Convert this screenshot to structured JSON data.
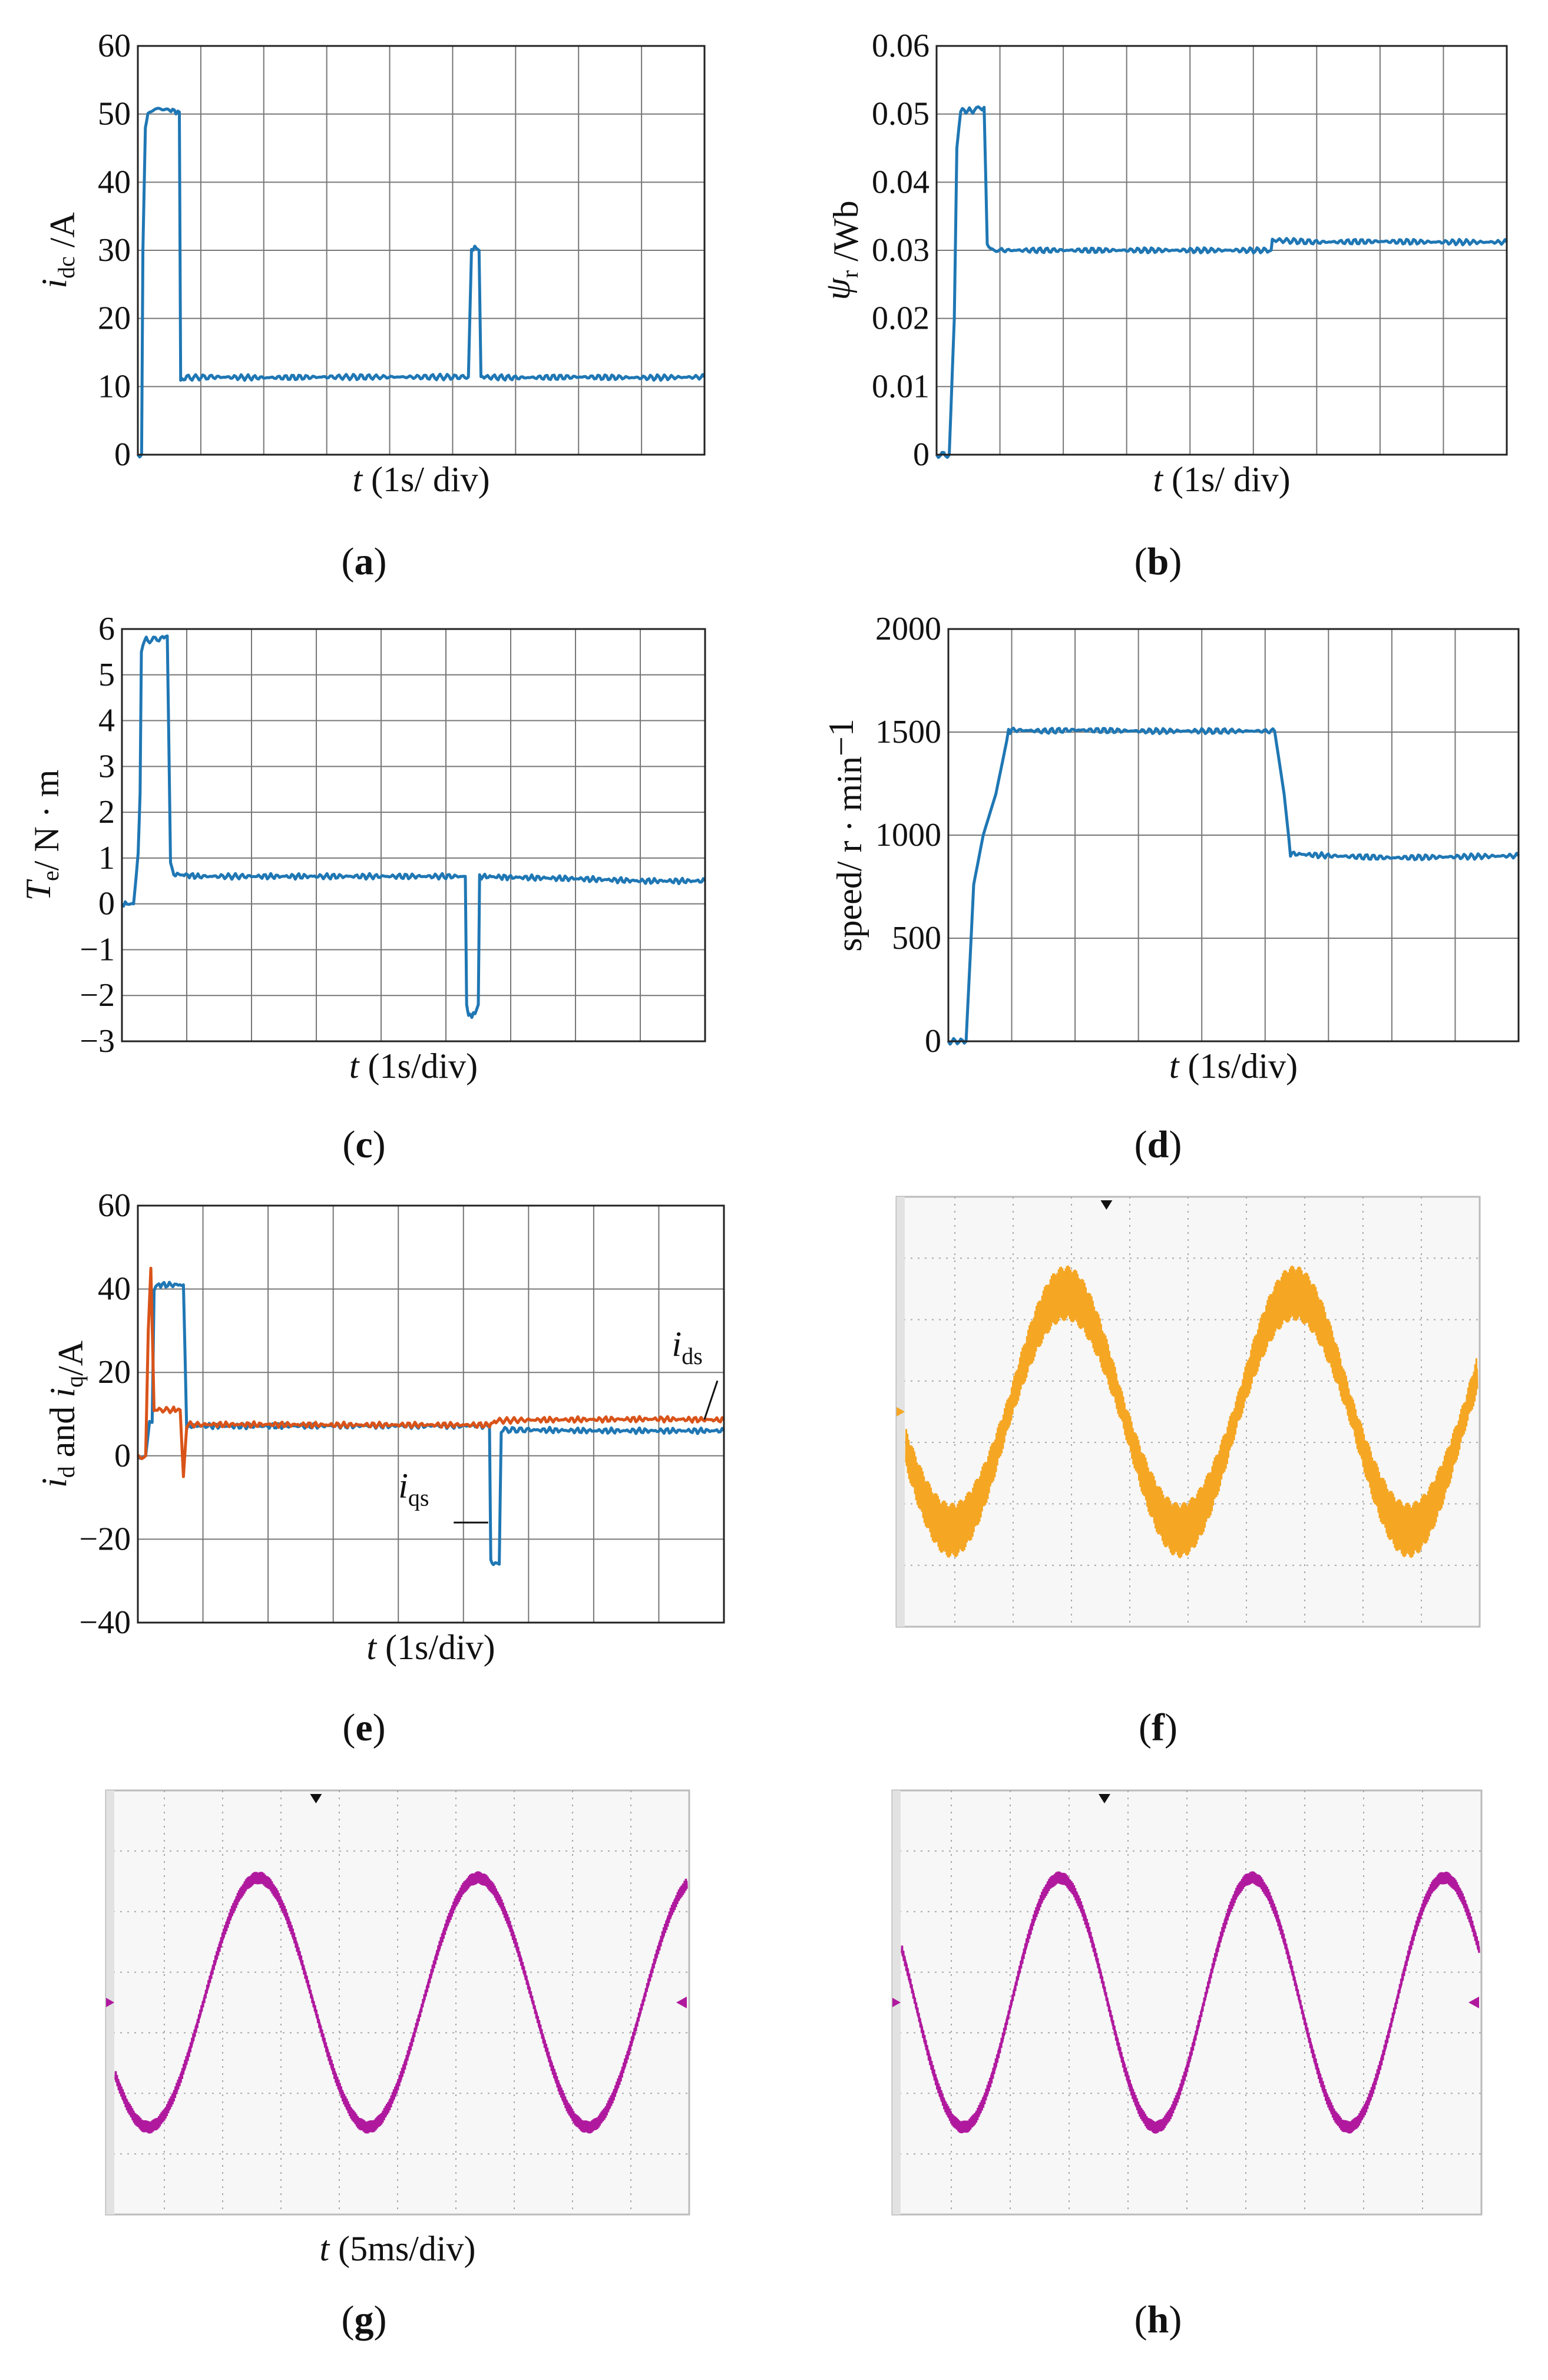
{
  "colors": {
    "blue": "#1f77b4",
    "orange": "#d95319",
    "scope_yellow": "#f5a623",
    "scope_magenta": "#b0199e"
  },
  "chart_data": [
    {
      "id": "a",
      "type": "line",
      "caption": "a",
      "xlabel": "t (1s/ div)",
      "ylabel": "idc /A",
      "ylim": [
        0,
        60
      ],
      "yticks": [
        0,
        10,
        20,
        30,
        40,
        50,
        60
      ],
      "ytick_labels": [
        "0",
        "10",
        "20",
        "30",
        "40",
        "50",
        "60"
      ],
      "xlim": [
        0,
        9
      ],
      "x_divisions": 9,
      "grid": true,
      "series": [
        {
          "name": "idc",
          "color": "#1f77b4",
          "x": [
            0,
            0.06,
            0.08,
            0.12,
            0.16,
            0.22,
            0.3,
            0.5,
            0.66,
            0.68,
            0.72,
            1.2,
            2.0,
            3.0,
            5.25,
            5.3,
            5.35,
            5.42,
            5.45,
            5.5,
            6.0,
            7.0,
            8.0,
            9.0
          ],
          "y": [
            0,
            0,
            30,
            48,
            50,
            50.5,
            50.8,
            50.6,
            50.3,
            11,
            11.3,
            11.4,
            11.3,
            11.4,
            11.4,
            30,
            30.5,
            30,
            11.5,
            11.4,
            11.3,
            11.4,
            11.3,
            11.4
          ]
        }
      ]
    },
    {
      "id": "b",
      "type": "line",
      "caption": "b",
      "xlabel": "t (1s/ div)",
      "ylabel": "ψr /Wb",
      "ylim": [
        0,
        0.06
      ],
      "yticks": [
        0,
        0.01,
        0.02,
        0.03,
        0.04,
        0.05,
        0.06
      ],
      "ytick_labels": [
        "0",
        "0.01",
        "0.02",
        "0.03",
        "0.04",
        "0.05",
        "0.06"
      ],
      "xlim": [
        0,
        9
      ],
      "x_divisions": 9,
      "grid": true,
      "series": [
        {
          "name": "ψr",
          "color": "#1f77b4",
          "x": [
            0,
            0.2,
            0.28,
            0.32,
            0.38,
            0.6,
            0.75,
            0.8,
            0.85,
            1.0,
            2.0,
            3.0,
            5.28,
            5.3,
            6.0,
            7.0,
            8.0,
            9.0
          ],
          "y": [
            0,
            0,
            0.02,
            0.045,
            0.0505,
            0.0505,
            0.051,
            0.031,
            0.0302,
            0.03,
            0.03,
            0.03,
            0.03,
            0.0315,
            0.0312,
            0.0313,
            0.0312,
            0.0312
          ]
        }
      ]
    },
    {
      "id": "c",
      "type": "line",
      "caption": "c",
      "xlabel": "t (1s/div)",
      "ylabel": "Te/ N · m",
      "ylim": [
        -3,
        6
      ],
      "yticks": [
        -3,
        -2,
        -1,
        0,
        1,
        2,
        3,
        4,
        5,
        6
      ],
      "ytick_labels": [
        "−3",
        "−2",
        "−1",
        "0",
        "1",
        "2",
        "3",
        "4",
        "5",
        "6"
      ],
      "xlim": [
        0,
        9
      ],
      "x_divisions": 9,
      "grid": true,
      "series": [
        {
          "name": "Te",
          "color": "#1f77b4",
          "x": [
            0,
            0.18,
            0.22,
            0.25,
            0.28,
            0.3,
            0.35,
            0.4,
            0.6,
            0.7,
            0.75,
            0.8,
            1.2,
            2.0,
            3.0,
            5.3,
            5.32,
            5.35,
            5.45,
            5.5,
            5.52,
            6.0,
            7.0,
            8.0,
            9.0
          ],
          "y": [
            0,
            0,
            0.6,
            1.1,
            2.4,
            5.5,
            5.8,
            5.75,
            5.8,
            5.85,
            0.9,
            0.65,
            0.6,
            0.6,
            0.6,
            0.6,
            -2.2,
            -2.45,
            -2.4,
            -2.2,
            0.6,
            0.58,
            0.55,
            0.5,
            0.5
          ]
        }
      ]
    },
    {
      "id": "d",
      "type": "line",
      "caption": "d",
      "xlabel": "t (1s/div)",
      "ylabel": "speed/ r · min−1",
      "ylim": [
        0,
        2000
      ],
      "yticks": [
        0,
        500,
        1000,
        1500,
        2000
      ],
      "ytick_labels": [
        "0",
        "500",
        "1000",
        "1500",
        "2000"
      ],
      "xlim": [
        0,
        9
      ],
      "x_divisions": 9,
      "grid": true,
      "series": [
        {
          "name": "speed",
          "color": "#1f77b4",
          "x": [
            0,
            0.28,
            0.4,
            0.55,
            0.75,
            0.95,
            1.0,
            1.5,
            2.0,
            3.0,
            4.0,
            5.15,
            5.3,
            5.4,
            6.0,
            7.0,
            8.0,
            9.0
          ],
          "y": [
            0,
            0,
            760,
            1000,
            1200,
            1500,
            1510,
            1505,
            1510,
            1505,
            1505,
            1505,
            1200,
            910,
            900,
            890,
            895,
            900
          ]
        }
      ]
    },
    {
      "id": "e",
      "type": "line",
      "caption": "e",
      "xlabel": "t (1s/div)",
      "ylabel": "id and iq/A",
      "ylim": [
        -40,
        60
      ],
      "yticks": [
        -40,
        -20,
        0,
        20,
        40,
        60
      ],
      "ytick_labels": [
        "−40",
        "−20",
        "0",
        "20",
        "40",
        "60"
      ],
      "xlim": [
        0,
        9
      ],
      "x_divisions": 9,
      "grid": true,
      "annotations": [
        {
          "text": "ids",
          "series": "ids"
        },
        {
          "text": "iqs",
          "series": "iqs"
        }
      ],
      "series": [
        {
          "name": "iqs",
          "color": "#1f77b4",
          "x": [
            0,
            0.12,
            0.18,
            0.22,
            0.25,
            0.3,
            0.35,
            0.7,
            0.75,
            0.8,
            1.5,
            3.0,
            5.4,
            5.42,
            5.46,
            5.55,
            5.58,
            6.0,
            7.0,
            8.0,
            9.0
          ],
          "y": [
            0,
            0,
            8,
            8,
            40,
            41,
            41,
            41,
            7,
            7.2,
            7.1,
            7.2,
            7.2,
            -25,
            -26.5,
            -26,
            6.2,
            6.2,
            6,
            6,
            6
          ]
        },
        {
          "name": "ids",
          "color": "#d95319",
          "x": [
            0,
            0.12,
            0.16,
            0.2,
            0.25,
            0.3,
            0.55,
            0.65,
            0.7,
            0.75,
            1.0,
            2.0,
            3.0,
            5.4,
            5.5,
            6.0,
            7.0,
            8.0,
            9.0
          ],
          "y": [
            0,
            0,
            30,
            45,
            11,
            11,
            11,
            11,
            -5,
            7.5,
            7.5,
            7.5,
            7.4,
            7.4,
            8.4,
            8.6,
            8.7,
            8.8,
            8.6
          ]
        }
      ]
    },
    {
      "id": "f",
      "type": "line",
      "caption": "f",
      "scope": true,
      "divisions": [
        10,
        7
      ],
      "color": "#f5a623",
      "cycles": 2.5,
      "amplitude": 0.92,
      "noise": 0.18,
      "phase": 0.2,
      "xlabel": ""
    },
    {
      "id": "g",
      "type": "line",
      "caption": "g",
      "scope": true,
      "divisions": [
        10,
        7
      ],
      "color": "#b0199e",
      "cycles": 2.6,
      "amplitude": 0.98,
      "noise": 0.04,
      "phase": 0.15,
      "xlabel": "t (5ms/div)"
    },
    {
      "id": "h",
      "type": "line",
      "caption": "h",
      "scope": true,
      "divisions": [
        10,
        7
      ],
      "color": "#b0199e",
      "cycles": 3.0,
      "amplitude": 0.98,
      "noise": 0.04,
      "phase": 0.32,
      "xlabel": ""
    }
  ]
}
